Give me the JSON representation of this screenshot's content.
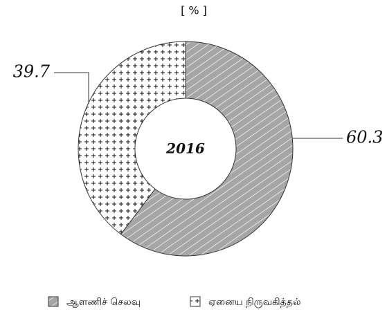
{
  "chart_data": {
    "type": "donut",
    "title": "[ % ]",
    "center_label": "2016",
    "categories": [
      "ஆளணிச் செலவு",
      "ஏனைய நிருவகித்தல்"
    ],
    "values": [
      60.3,
      39.7
    ],
    "colors": [
      "#a6a6a6",
      "#ffffff"
    ],
    "legend": "bottom"
  }
}
